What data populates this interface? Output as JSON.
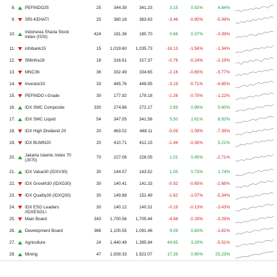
{
  "colors": {
    "up": "#1a9a33",
    "down": "#d42020",
    "sparkline": "#999999"
  },
  "icons": {
    "up": "triangle-up-icon",
    "down": "triangle-down-icon"
  },
  "rows": [
    {
      "no": "8.",
      "dir": "up",
      "name": "PEFINDO25",
      "n": "25",
      "prev": "344.39",
      "last": "341.23",
      "chg": "3.15",
      "pct": "0.92%",
      "ytd": "4.84%",
      "chg_dir": "up",
      "pct_dir": "up",
      "ytd_dir": "up",
      "trend": [
        5,
        6,
        4,
        7,
        6,
        8,
        7,
        9,
        8,
        10,
        11,
        9,
        12,
        13
      ]
    },
    {
      "no": "9.",
      "dir": "down",
      "name": "SRI-KEHATI",
      "n": "25",
      "prev": "380.18",
      "last": "383.63",
      "chg": "-3.46",
      "pct": "-0.90%",
      "ytd": "-5.09%",
      "chg_dir": "down",
      "pct_dir": "down",
      "ytd_dir": "down",
      "trend": [
        6,
        5,
        7,
        6,
        8,
        7,
        9,
        8,
        10,
        9,
        11,
        10,
        12,
        11
      ]
    },
    {
      "no": "10.",
      "dir": "up",
      "name": "Indonesia Sharia Stock Index (ISSI)",
      "n": "424",
      "prev": "181.36",
      "last": "180.70",
      "chg": "0.66",
      "pct": "0.37%",
      "ytd": "-3.39%",
      "chg_dir": "up",
      "pct_dir": "up",
      "ytd_dir": "down",
      "trend": [
        4,
        6,
        5,
        7,
        6,
        9,
        8,
        7,
        10,
        9,
        12,
        11,
        13,
        12
      ]
    },
    {
      "no": "11.",
      "dir": "down",
      "name": "infobank15",
      "n": "15",
      "prev": "1,019.60",
      "last": "1,035.73",
      "chg": "-16.13",
      "pct": "-1.56%",
      "ytd": "-1.34%",
      "chg_dir": "down",
      "pct_dir": "down",
      "ytd_dir": "down",
      "trend": [
        5,
        6,
        5,
        7,
        8,
        7,
        9,
        10,
        9,
        11,
        10,
        12,
        11,
        13
      ]
    },
    {
      "no": "12.",
      "dir": "down",
      "name": "SMinfra18",
      "n": "18",
      "prev": "316.61",
      "last": "317.37",
      "chg": "-0.76",
      "pct": "-0.24%",
      "ytd": "-2.19%",
      "chg_dir": "down",
      "pct_dir": "down",
      "ytd_dir": "down",
      "trend": [
        6,
        7,
        5,
        8,
        7,
        9,
        8,
        10,
        9,
        8,
        11,
        10,
        12,
        11
      ]
    },
    {
      "no": "13.",
      "dir": "down",
      "name": "MNC36",
      "n": "36",
      "prev": "332.49",
      "last": "334.65",
      "chg": "-2.16",
      "pct": "-0.65%",
      "ytd": "-5.77%",
      "chg_dir": "down",
      "pct_dir": "down",
      "ytd_dir": "down",
      "trend": [
        5,
        7,
        6,
        8,
        7,
        9,
        10,
        9,
        11,
        10,
        12,
        11,
        13,
        12
      ]
    },
    {
      "no": "14.",
      "dir": "down",
      "name": "Investor33",
      "n": "33",
      "prev": "445.76",
      "last": "448.95",
      "chg": "-3.19",
      "pct": "-0.71%",
      "ytd": "-4.65%",
      "chg_dir": "down",
      "pct_dir": "down",
      "ytd_dir": "down",
      "trend": [
        6,
        5,
        7,
        8,
        7,
        9,
        8,
        10,
        11,
        10,
        12,
        11,
        13,
        12
      ]
    },
    {
      "no": "15.",
      "dir": "down",
      "name": "PEFINDO i-Grade",
      "n": "30",
      "prev": "177.92",
      "last": "179.18",
      "chg": "-1.26",
      "pct": "-0.70%",
      "ytd": "-1.22%",
      "chg_dir": "down",
      "pct_dir": "down",
      "ytd_dir": "down",
      "trend": [
        5,
        6,
        7,
        6,
        8,
        9,
        8,
        10,
        9,
        11,
        12,
        11,
        13,
        12
      ]
    },
    {
      "no": "16.",
      "dir": "up",
      "name": "IDX SMC Composite",
      "n": "330",
      "prev": "274.86",
      "last": "272.17",
      "chg": "2.69",
      "pct": "0.99%",
      "ytd": "5.60%",
      "chg_dir": "up",
      "pct_dir": "up",
      "ytd_dir": "up",
      "trend": [
        4,
        5,
        6,
        5,
        7,
        8,
        7,
        9,
        10,
        9,
        11,
        12,
        11,
        13
      ]
    },
    {
      "no": "17.",
      "dir": "up",
      "name": "IDX SMC Liquid",
      "n": "54",
      "prev": "347.05",
      "last": "341.56",
      "chg": "5.50",
      "pct": "1.61%",
      "ytd": "8.92%",
      "chg_dir": "up",
      "pct_dir": "up",
      "ytd_dir": "up",
      "trend": [
        4,
        5,
        5,
        7,
        6,
        8,
        9,
        8,
        10,
        11,
        10,
        12,
        13,
        12
      ]
    },
    {
      "no": "18.",
      "dir": "down",
      "name": "IDX High Dividend 20",
      "n": "20",
      "prev": "463.02",
      "last": "468.11",
      "chg": "-5.09",
      "pct": "-1.09%",
      "ytd": "-7.39%",
      "chg_dir": "down",
      "pct_dir": "down",
      "ytd_dir": "down",
      "trend": [
        6,
        7,
        6,
        8,
        9,
        8,
        10,
        9,
        11,
        10,
        12,
        11,
        12,
        13
      ]
    },
    {
      "no": "19.",
      "dir": "down",
      "name": "IDX BUMN20",
      "n": "20",
      "prev": "410.71",
      "last": "412.15",
      "chg": "-1.44",
      "pct": "-0.35%",
      "ytd": "5.21%",
      "chg_dir": "down",
      "pct_dir": "down",
      "ytd_dir": "up",
      "trend": [
        5,
        6,
        8,
        7,
        9,
        8,
        10,
        11,
        10,
        12,
        11,
        13,
        12,
        13
      ]
    },
    {
      "no": "20.",
      "dir": "up",
      "name": "Jakarta Islamic Index 70 (JII70)",
      "n": "70",
      "prev": "227.06",
      "last": "226.05",
      "chg": "1.01",
      "pct": "0.45%",
      "ytd": "-2.71%",
      "chg_dir": "up",
      "pct_dir": "up",
      "ytd_dir": "down",
      "trend": [
        6,
        5,
        7,
        6,
        8,
        7,
        9,
        10,
        9,
        11,
        10,
        12,
        11,
        13
      ]
    },
    {
      "no": "21.",
      "dir": "up",
      "name": "IDX Value30 (IDXV30)",
      "n": "30",
      "prev": "144.57",
      "last": "143.52",
      "chg": "1.05",
      "pct": "0.73%",
      "ytd": "1.74%",
      "chg_dir": "up",
      "pct_dir": "up",
      "ytd_dir": "up",
      "trend": [
        5,
        6,
        5,
        7,
        8,
        9,
        8,
        10,
        11,
        10,
        12,
        11,
        13,
        12
      ]
    },
    {
      "no": "22.",
      "dir": "down",
      "name": "IDX Growth30 (IDXG30)",
      "n": "30",
      "prev": "140.41",
      "last": "141.33",
      "chg": "-0.92",
      "pct": "-0.65%",
      "ytd": "-2.68%",
      "chg_dir": "down",
      "pct_dir": "down",
      "ytd_dir": "down",
      "trend": [
        6,
        7,
        6,
        8,
        7,
        9,
        10,
        9,
        11,
        12,
        11,
        13,
        12,
        13
      ]
    },
    {
      "no": "23.",
      "dir": "down",
      "name": "IDX Quality30 (IDXQ30)",
      "n": "30",
      "prev": "149.88",
      "last": "151.49",
      "chg": "-1.62",
      "pct": "-1.07%",
      "ytd": "-5.34%",
      "chg_dir": "down",
      "pct_dir": "down",
      "ytd_dir": "down",
      "trend": [
        5,
        6,
        7,
        8,
        7,
        9,
        8,
        10,
        9,
        11,
        12,
        11,
        13,
        12
      ]
    },
    {
      "no": "24.",
      "dir": "down",
      "name": "IDX ESG Leaders (IDXESGL)",
      "n": "30",
      "prev": "140.12",
      "last": "140.31",
      "chg": "-0.19",
      "pct": "-0.13%",
      "ytd": "-3.43%",
      "chg_dir": "down",
      "pct_dir": "down",
      "ytd_dir": "down",
      "trend": [
        6,
        5,
        7,
        8,
        7,
        9,
        10,
        9,
        11,
        10,
        12,
        13,
        12,
        13
      ]
    },
    {
      "no": "25.",
      "dir": "down",
      "name": "Main Board",
      "n": "343",
      "prev": "1,700.56",
      "last": "1,705.44",
      "chg": "-4.88",
      "pct": "-0.29%",
      "ytd": "-3.29%",
      "chg_dir": "down",
      "pct_dir": "down",
      "ytd_dir": "down",
      "trend": [
        5,
        6,
        5,
        7,
        6,
        8,
        9,
        8,
        10,
        11,
        10,
        12,
        11,
        13
      ]
    },
    {
      "no": "26.",
      "dir": "up",
      "name": "Development Board",
      "n": "366",
      "prev": "1,100.55",
      "last": "1,091.46",
      "chg": "9.09",
      "pct": "0.83%",
      "ytd": "-1.81%",
      "chg_dir": "up",
      "pct_dir": "up",
      "ytd_dir": "down",
      "trend": [
        4,
        6,
        5,
        7,
        8,
        7,
        9,
        10,
        9,
        11,
        12,
        11,
        13,
        12
      ]
    },
    {
      "no": "27.",
      "dir": "up",
      "name": "Agriculture",
      "n": "24",
      "prev": "1,440.49",
      "last": "1,395.84",
      "chg": "44.65",
      "pct": "3.20%",
      "ytd": "-5.51%",
      "chg_dir": "up",
      "pct_dir": "up",
      "ytd_dir": "down",
      "trend": [
        5,
        4,
        6,
        7,
        6,
        8,
        7,
        9,
        10,
        9,
        11,
        12,
        11,
        13
      ]
    },
    {
      "no": "28.",
      "dir": "up",
      "name": "Mining",
      "n": "47",
      "prev": "1,939.33",
      "last": "1,922.07",
      "chg": "17.26",
      "pct": "0.90%",
      "ytd": "25.23%",
      "chg_dir": "up",
      "pct_dir": "up",
      "ytd_dir": "up",
      "trend": [
        3,
        4,
        5,
        6,
        5,
        7,
        8,
        9,
        8,
        10,
        11,
        12,
        12,
        13
      ]
    }
  ]
}
